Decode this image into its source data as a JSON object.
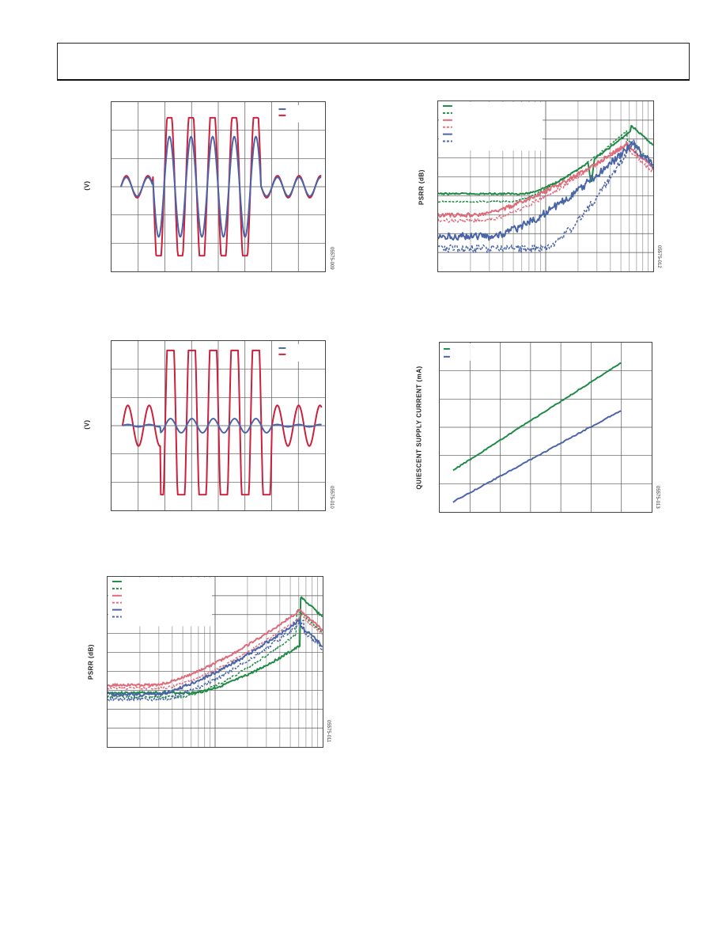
{
  "page": {
    "header_text": ""
  },
  "chart_data": [
    {
      "type": "line",
      "ylabel": "(V)",
      "figure_id": "05575-009",
      "grid": true,
      "legend_position": "top-right",
      "ylim": [
        -3,
        3
      ],
      "series": [
        {
          "color": "#4a64a8",
          "description": "input sine, amplitude ~1.7 V during burst, ~0.3 V elsewhere"
        },
        {
          "color": "#cc1f3c",
          "description": "output, clipped at ~±2.5 V during burst"
        }
      ]
    },
    {
      "type": "line",
      "ylabel": "(V)",
      "figure_id": "05575-010",
      "grid": true,
      "legend_position": "top-right",
      "ylim": [
        -3,
        3
      ],
      "series": [
        {
          "color": "#4a64a8",
          "description": "small sine ~0.3 V"
        },
        {
          "color": "#cc1f3c",
          "description": "output sine ~0.8 V, clipped at ~±2.6 V during burst"
        }
      ]
    },
    {
      "type": "line",
      "ylabel": "PSRR (dB)",
      "figure_id": "05575-011",
      "x_scale": "log",
      "grid": true,
      "legend_position": "top-left",
      "series": [
        {
          "color": "#1e8a45",
          "style": "solid"
        },
        {
          "color": "#1e8a45",
          "style": "dashed"
        },
        {
          "color": "#e06a7a",
          "style": "solid"
        },
        {
          "color": "#e06a7a",
          "style": "dashed"
        },
        {
          "color": "#4a64a8",
          "style": "solid"
        },
        {
          "color": "#4a64a8",
          "style": "dashed"
        }
      ]
    },
    {
      "type": "line",
      "ylabel": "PSRR (dB)",
      "figure_id": "05575-012",
      "x_scale": "log",
      "grid": true,
      "legend_position": "top-left",
      "series": [
        {
          "color": "#1e8a45",
          "style": "solid"
        },
        {
          "color": "#1e8a45",
          "style": "dashed"
        },
        {
          "color": "#e06a7a",
          "style": "solid"
        },
        {
          "color": "#e06a7a",
          "style": "dashed"
        },
        {
          "color": "#4a64a8",
          "style": "solid"
        },
        {
          "color": "#4a64a8",
          "style": "dashed"
        }
      ]
    },
    {
      "type": "line",
      "ylabel": "QUIESCENT SUPPLY CURRENT (mA)",
      "figure_id": "05575-013",
      "grid": true,
      "legend_position": "top-left",
      "series": [
        {
          "color": "#1e8a45",
          "style": "solid",
          "trend": "increasing linear, upper"
        },
        {
          "color": "#4a64a8",
          "style": "solid",
          "trend": "increasing linear, lower"
        }
      ]
    }
  ]
}
